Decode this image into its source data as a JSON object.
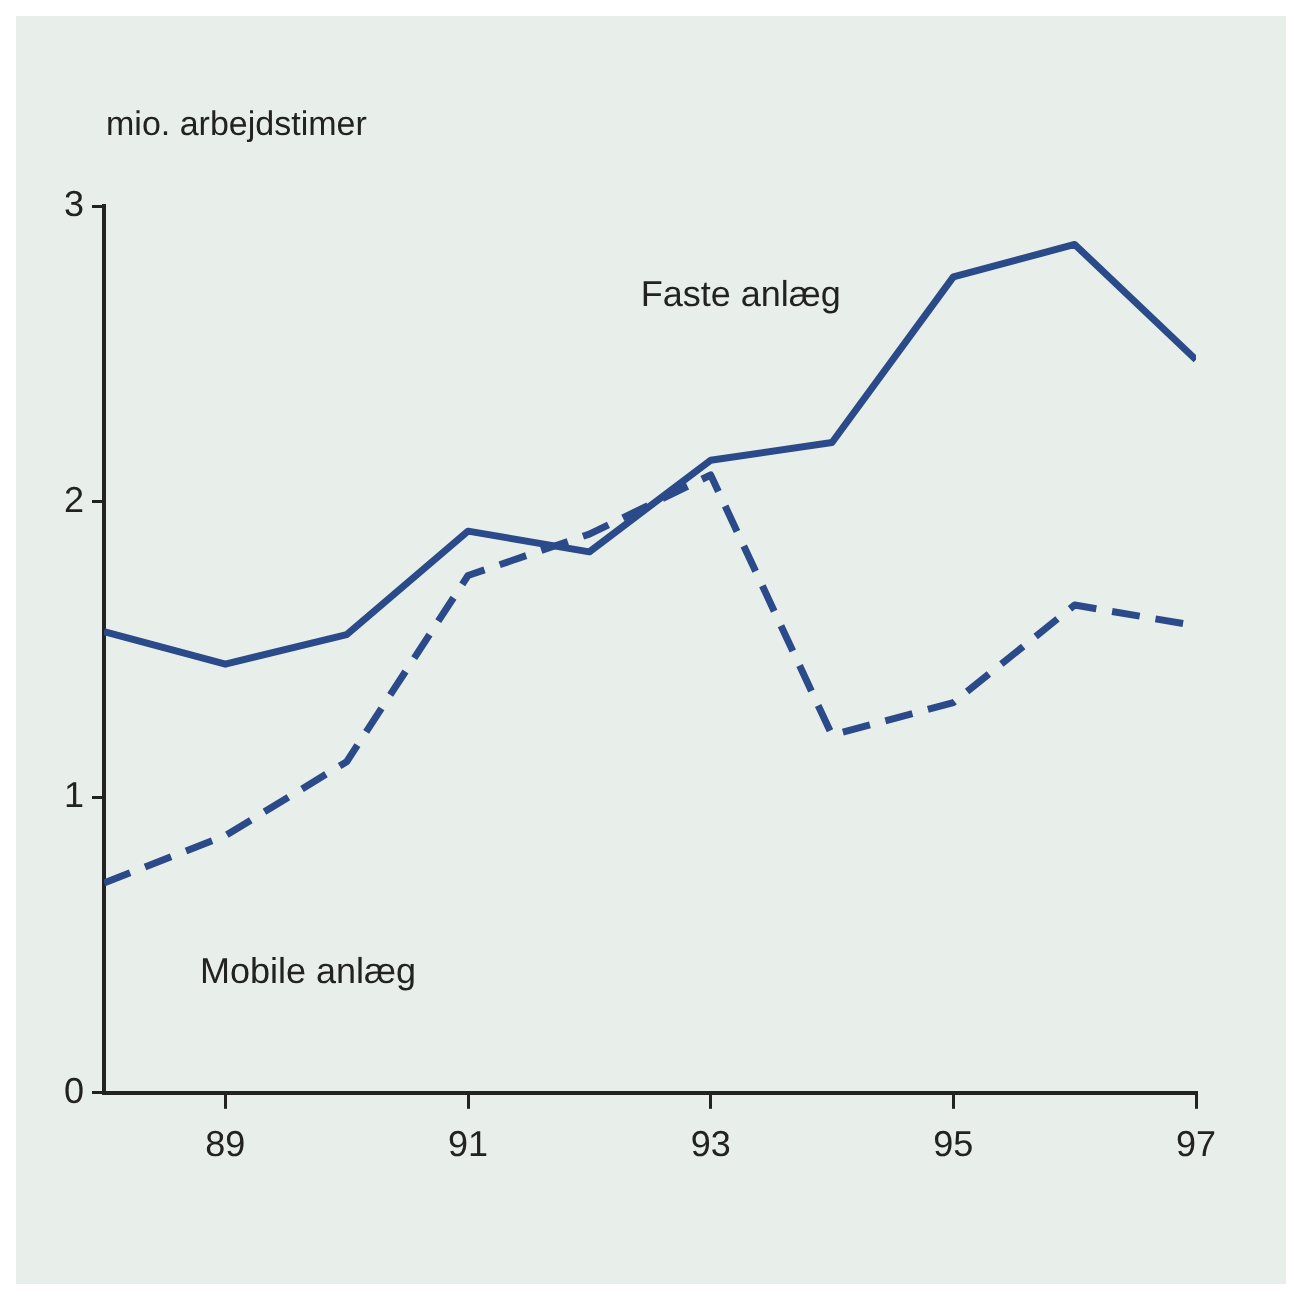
{
  "chart_data": {
    "type": "line",
    "ylabel": "mio. arbejdstimer",
    "x": [
      88,
      89,
      90,
      91,
      92,
      93,
      94,
      95,
      96,
      97
    ],
    "xlim": [
      88,
      97
    ],
    "xticks": [
      89,
      91,
      93,
      95,
      97
    ],
    "ylim": [
      0,
      3
    ],
    "yticks": [
      0,
      1,
      2,
      3
    ],
    "grid": false,
    "legend": false,
    "series": [
      {
        "name": "Faste anlæg",
        "color": "#2b4a8a",
        "line_style": "solid",
        "values": [
          1.56,
          1.45,
          1.55,
          1.9,
          1.83,
          2.14,
          2.2,
          2.76,
          2.87,
          2.48
        ]
      },
      {
        "name": "Mobile anlæg",
        "color": "#2b4a8a",
        "line_style": "dashed",
        "values": [
          0.71,
          0.87,
          1.12,
          1.75,
          1.89,
          2.09,
          1.21,
          1.32,
          1.65,
          1.58
        ]
      }
    ]
  }
}
